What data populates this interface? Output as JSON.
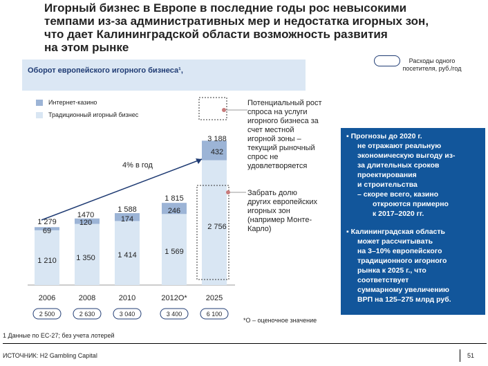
{
  "title_lines": [
    "Игорный бизнес в Европе в последние годы рос невысокими",
    "темпами из-за административных мер и недостатка игорных зон,",
    "что дает Калининградской области возможность развития",
    "на этом рынке"
  ],
  "pill_label_lines": [
    "Расходы одного",
    "посетителя, руб./год"
  ],
  "chart_title": "Оборот европейского игорного бизнеса¹,",
  "colors": {
    "casino": "#9cb4d6",
    "traditional": "#d9e6f3",
    "pill_border": "#1f3b73",
    "panel": "#12569b",
    "dot": "#c87b7b"
  },
  "chart_data": {
    "type": "bar",
    "stacked": true,
    "title": "Оборот европейского игорного бизнеса¹,",
    "categories": [
      "2006",
      "2008",
      "2010",
      "2012O*",
      "2025"
    ],
    "series": [
      {
        "name": "Традиционный игорный бизнес",
        "values": [
          1210,
          1350,
          1414,
          1569,
          2756
        ]
      },
      {
        "name": "Интернет-казино",
        "values": [
          69,
          120,
          174,
          246,
          432
        ]
      }
    ],
    "totals": [
      "1 279",
      "1470",
      "1 588",
      "1 815",
      "3 188"
    ],
    "traditional_labels": [
      "1 210",
      "1 350",
      "1 414",
      "1 569",
      "2 756"
    ],
    "casino_labels": [
      "69",
      "120",
      "174",
      "246",
      "432"
    ],
    "spend_per_visitor": [
      "2 500",
      "2 630",
      "3 040",
      "3 400",
      "6 100"
    ],
    "growth_annotation": "4% в год",
    "legend_placement": "top-left",
    "ylim": [
      0,
      3300
    ]
  },
  "annotation_top_lines": [
    "Потенциальный рост",
    "спроса на услуги",
    "игорного бизнеса за",
    "счет местной",
    "игорной зоны –",
    "текущий рыночный",
    "спрос не",
    "удовлетворяется"
  ],
  "annotation_bottom_lines": [
    "Забрать долю",
    "других европейских",
    "игорных зон",
    "(например Монте-",
    "Карло)"
  ],
  "panel_lines": [
    "▪  Прогнозы до 2020 г.",
    "не отражают реальную",
    "экономическую выгоду из-",
    "за длительных сроков",
    "проектирования",
    "и строительства",
    "–   скорее всего, казино",
    "откроются примерно",
    "к 2017–2020 гг.",
    "▪  Калининградская область",
    "может рассчитывать",
    "на 3–10% европейского",
    "традиционного игорного",
    "рынка к 2025 г., что",
    "соответствует",
    "суммарному увеличению",
    "ВРП на 125–275 млрд руб."
  ],
  "estimate_note": "*O – оценочное значение",
  "footnote": "1 Данные по ЕС-27; без учета лотерей",
  "source": "ИСТОЧНИК: H2 Gambling Capital",
  "page_number": "51"
}
